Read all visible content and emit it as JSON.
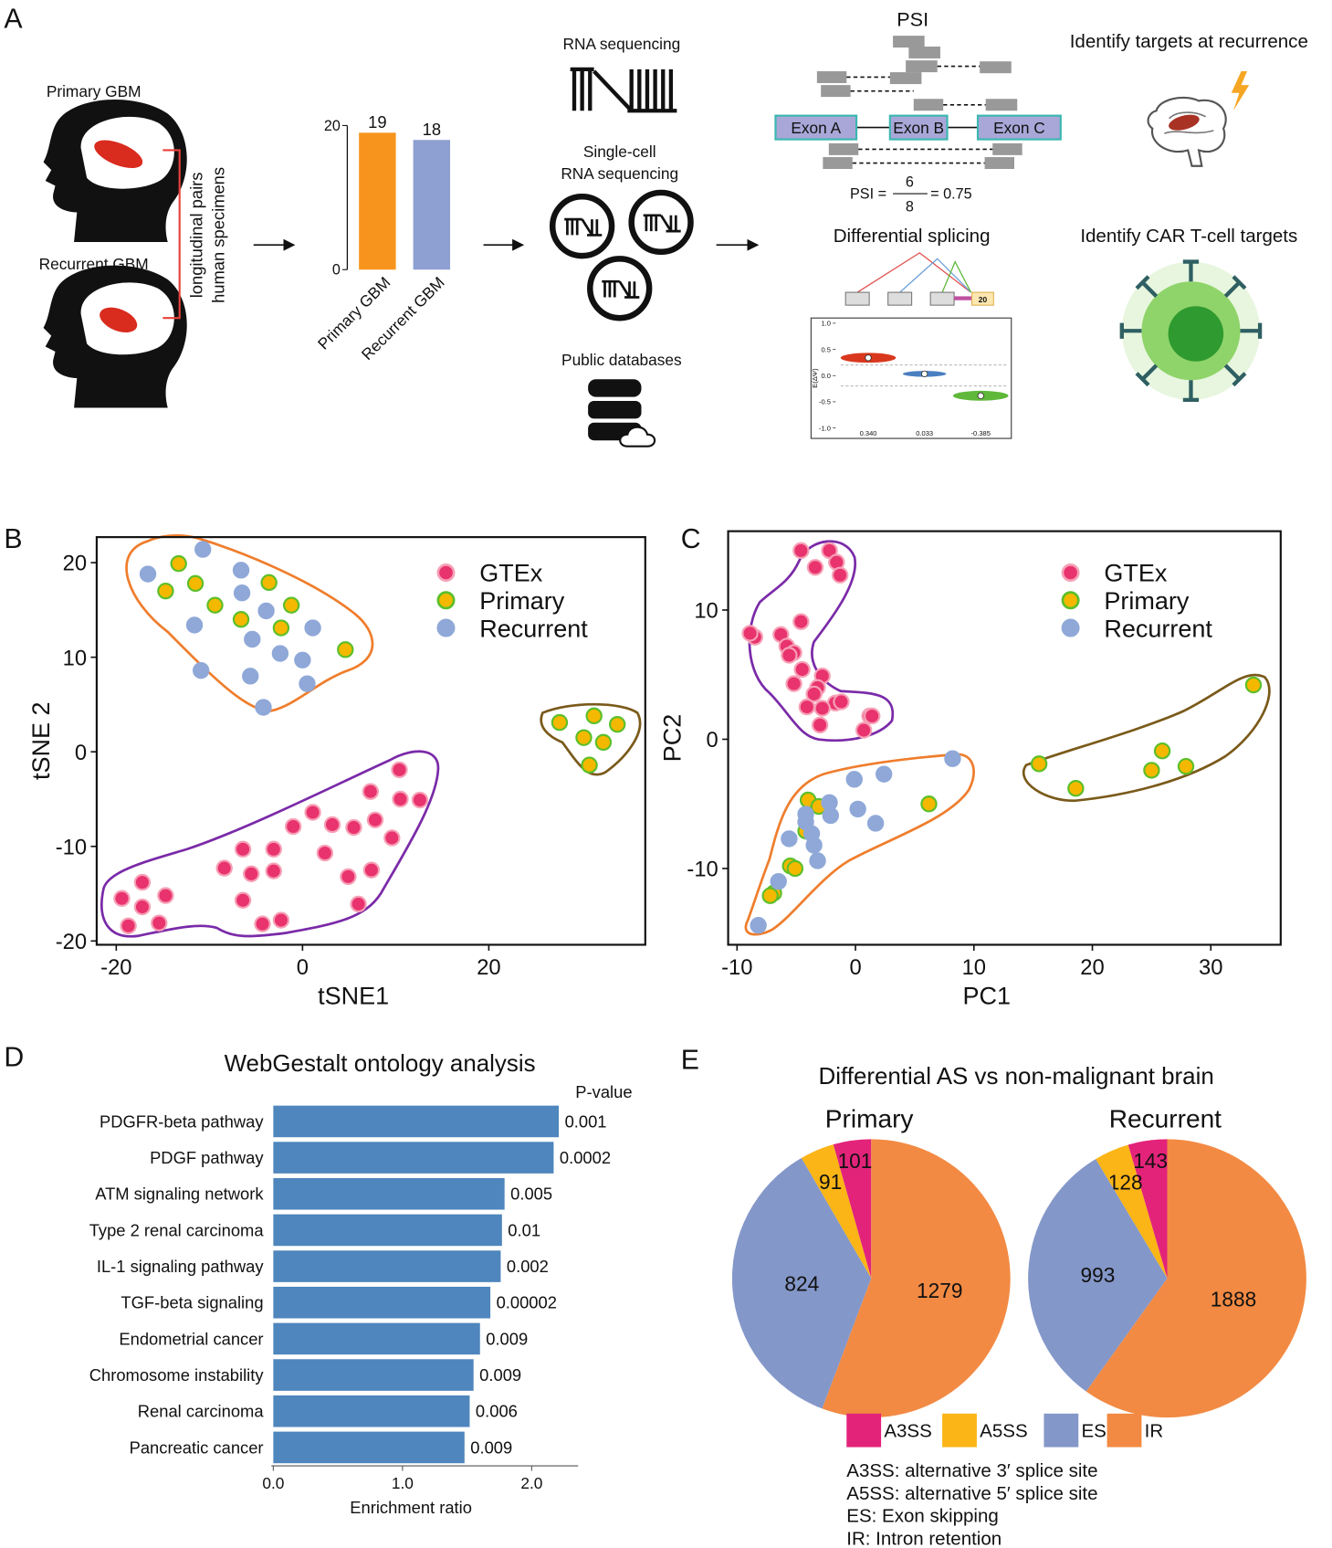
{
  "panel_labels": [
    "A",
    "B",
    "C",
    "D",
    "E"
  ],
  "diagram": {
    "primary_label": "Primary GBM",
    "recurrent_label": "Recurrent GBM",
    "pairs_label": [
      "longitudinal pairs",
      "human specimens"
    ],
    "rna_seq": "RNA sequencing",
    "single_cell": [
      "Single-cell",
      "RNA sequencing"
    ],
    "public_db": "Public databases",
    "psi_title": "PSI",
    "exons": [
      "Exon A",
      "Exon B",
      "Exon C"
    ],
    "psi_formula": {
      "lhs": "PSI =",
      "numerator": "6",
      "denominator": "8",
      "result": "= 0.75"
    },
    "diff_splicing": "Differential splicing",
    "exon_count": "20",
    "targets_recurrence": "Identify targets at recurrence",
    "car_t": "Identify CAR T-cell targets"
  },
  "chart_data": [
    {
      "type": "bar",
      "categories": [
        "Primary GBM",
        "Recurrent GBM"
      ],
      "values": [
        19,
        18
      ],
      "colors": [
        "#f7941d",
        "#8e9fd1"
      ],
      "ylim": [
        0,
        20
      ],
      "yticks": [
        0,
        20
      ]
    },
    {
      "type": "violin",
      "values": [
        0.34,
        0.033,
        -0.385
      ],
      "value_labels": [
        "0.340",
        "0.033",
        "-0.385"
      ],
      "colors": [
        "#d9381e",
        "#4a7fc1",
        "#5fb83a"
      ],
      "ylabel": "E(ΔΨ)",
      "ylim": [
        -1.2,
        1.1
      ],
      "yticks": [
        {
          "value": 1,
          "label": "1.0"
        },
        {
          "value": 0.5,
          "label": "0.5"
        },
        {
          "value": 0,
          "label": "0.0"
        },
        {
          "value": -0.5,
          "label": "-0.5"
        },
        {
          "value": -1,
          "label": "-1.0"
        }
      ]
    },
    {
      "type": "scatter",
      "xlabel": "tSNE1",
      "ylabel": "tSNE 2",
      "xlim": [
        -22.1,
        36.8
      ],
      "ylim": [
        -20.4,
        22.7
      ],
      "xticks": [
        -20,
        0,
        20
      ],
      "yticks": [
        -20,
        -10,
        0,
        10,
        20
      ],
      "series": [
        {
          "name": "GTEx",
          "color": "#e8336e",
          "edgecolor": "#f6a0b6",
          "x": [
            -19.4,
            -18.7,
            -17.2,
            -17.2,
            -15.4,
            -14.7,
            -8.4,
            -6.4,
            -5.5,
            -3.1,
            -6.4,
            -4.3,
            -2.3,
            -3.1,
            -1.0,
            1.1,
            2.4,
            3.2,
            4.9,
            5.5,
            7.3,
            7.8,
            7.4,
            6.0,
            9.6,
            10.4,
            10.5,
            12.6
          ],
          "y": [
            -15.5,
            -18.4,
            -13.8,
            -16.4,
            -18.1,
            -15.2,
            -12.3,
            -10.3,
            -12.9,
            -10.3,
            -15.7,
            -18.2,
            -17.8,
            -12.6,
            -7.9,
            -6.4,
            -10.7,
            -7.7,
            -13.2,
            -8.0,
            -4.2,
            -7.2,
            -12.5,
            -16.1,
            -9.1,
            -1.9,
            -5.0,
            -5.1
          ]
        },
        {
          "name": "Primary",
          "color": "#f5b800",
          "edgecolor": "#5cbf2a",
          "x": [
            -13.3,
            -11.5,
            -14.7,
            -9.4,
            -6.6,
            -3.6,
            -1.2,
            -2.3,
            4.6,
            27.6,
            31.3,
            33.8,
            30.2,
            32.3,
            30.8
          ],
          "y": [
            19.9,
            17.8,
            17.0,
            15.5,
            14.0,
            17.9,
            15.5,
            13.1,
            10.8,
            3.1,
            3.8,
            2.9,
            1.5,
            1.0,
            -1.4
          ]
        },
        {
          "name": "Recurrent",
          "color": "#8fa8d8",
          "edgecolor": "#8fa8d8",
          "x": [
            -16.6,
            -10.7,
            -6.6,
            -6.5,
            -11.6,
            -3.9,
            -5.4,
            -10.9,
            -2.4,
            1.1,
            0.0,
            -5.6,
            -4.2,
            0.5
          ],
          "y": [
            18.8,
            21.4,
            19.2,
            16.8,
            13.4,
            14.9,
            11.9,
            8.6,
            10.4,
            13.1,
            9.7,
            8.0,
            4.7,
            7.2
          ]
        }
      ]
    },
    {
      "type": "scatter",
      "xlabel": "PC1",
      "ylabel": "PC2",
      "xlim": [
        -10.75,
        35.9
      ],
      "ylim": [
        -15.9,
        16.1
      ],
      "xticks": [
        -10,
        0,
        10,
        20,
        30
      ],
      "yticks": [
        -10,
        0,
        10
      ],
      "series": [
        {
          "name": "GTEx",
          "color": "#e8336e",
          "edgecolor": "#f6a0b6",
          "x": [
            -4.6,
            -2.2,
            -3.4,
            -1.6,
            -1.3,
            -4.6,
            -8.5,
            -8.9,
            -6.3,
            -5.8,
            -5.2,
            -5.6,
            -4.5,
            -2.8,
            -5.2,
            -3.2,
            -3.5,
            -1.7,
            -4.1,
            -2.8,
            -1.2,
            1.2,
            1.4,
            0.7,
            -3.0
          ],
          "y": [
            14.6,
            14.6,
            13.3,
            13.7,
            12.7,
            9.1,
            7.9,
            8.2,
            8.1,
            7.2,
            6.7,
            6.5,
            5.4,
            4.9,
            4.3,
            4.0,
            3.5,
            2.8,
            2.5,
            2.4,
            2.9,
            1.8,
            1.8,
            0.7,
            1.1
          ]
        },
        {
          "name": "Primary",
          "color": "#f5b800",
          "edgecolor": "#5cbf2a",
          "x": [
            15.5,
            18.6,
            25.0,
            25.9,
            27.9,
            33.6,
            6.2,
            -4.0,
            -3.1,
            -4.2,
            -5.5,
            -5.1,
            -6.9,
            -7.2
          ],
          "y": [
            -1.9,
            -3.8,
            -2.4,
            -0.9,
            -2.1,
            4.2,
            -5.0,
            -4.7,
            -5.2,
            -7.1,
            -9.8,
            -10.0,
            -11.9,
            -12.1
          ]
        },
        {
          "name": "Recurrent",
          "color": "#8fa8d8",
          "edgecolor": "#8fa8d8",
          "x": [
            8.2,
            2.4,
            -0.1,
            -2.2,
            -4.2,
            -3.7,
            -2.1,
            0.2,
            1.7,
            -5.6,
            -3.5,
            -3.2,
            -6.5,
            -8.2,
            -4.2
          ],
          "y": [
            -1.5,
            -2.7,
            -3.1,
            -4.9,
            -6.4,
            -7.3,
            -5.9,
            -5.4,
            -6.5,
            -7.7,
            -8.2,
            -9.4,
            -11.0,
            -14.4,
            -5.8
          ]
        }
      ]
    },
    {
      "type": "barh",
      "title": "WebGestalt ontology analysis",
      "categories": [
        "PDGFR-beta pathway",
        "PDGF pathway",
        "ATM signaling network",
        "Type 2 renal carcinoma",
        "IL-1 signaling pathway",
        "TGF-beta signaling",
        "Endometrial cancer",
        "Chromosome instability",
        "Renal carcinoma",
        "Pancreatic cancer"
      ],
      "values": [
        2.21,
        2.17,
        1.79,
        1.77,
        1.76,
        1.68,
        1.6,
        1.55,
        1.52,
        1.48
      ],
      "color": "#4e86bd",
      "p_value_label": "P-value",
      "p_values": [
        0.001,
        0.0002,
        0.005,
        0.01,
        0.002,
        2e-05,
        0.009,
        0.009,
        0.006,
        0.009
      ],
      "xlabel": "Enrichment ratio",
      "xlim": [
        0,
        2.36
      ],
      "xticks": [
        {
          "value": 0,
          "label": "0.0"
        },
        {
          "value": 1,
          "label": "1.0"
        },
        {
          "value": 2,
          "label": "2.0"
        }
      ]
    },
    {
      "type": "pie",
      "title": "Differential AS vs non-malignant brain",
      "categories": [
        "A3SS",
        "A5SS",
        "ES",
        "IR"
      ],
      "colors": [
        "#e3237a",
        "#fbb516",
        "#8497c9",
        "#f28a43"
      ],
      "series": [
        {
          "name": "Primary",
          "values": [
            101,
            91,
            824,
            1279
          ]
        },
        {
          "name": "Recurrent",
          "values": [
            143,
            128,
            993,
            1888
          ]
        }
      ],
      "notes": [
        "A3SS: alternative 3′ splice site",
        "A5SS: alternative 5′ splice site",
        "ES: Exon skipping",
        "IR: Intron retention"
      ]
    }
  ]
}
